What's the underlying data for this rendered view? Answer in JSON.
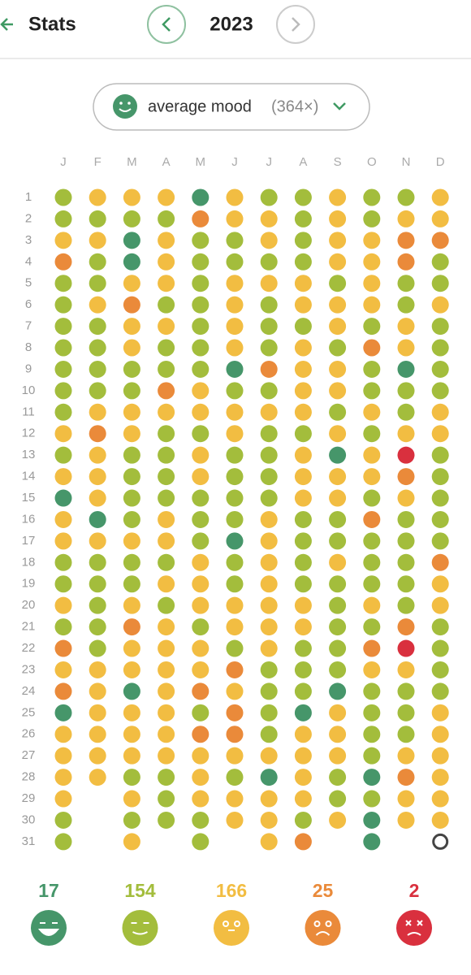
{
  "header": {
    "title": "Stats",
    "year": "2023"
  },
  "filter": {
    "label": "average mood",
    "count": "(364×)"
  },
  "mood_colors": {
    "1": "#d9303e",
    "2": "#ea8a3a",
    "3": "#f2bd42",
    "4": "#a3bd3c",
    "5": "#46966a"
  },
  "month_labels": [
    "J",
    "F",
    "M",
    "A",
    "M",
    "J",
    "J",
    "A",
    "S",
    "O",
    "N",
    "D"
  ],
  "day_labels": [
    1,
    2,
    3,
    4,
    5,
    6,
    7,
    8,
    9,
    10,
    11,
    12,
    13,
    14,
    15,
    16,
    17,
    18,
    19,
    20,
    21,
    22,
    23,
    24,
    25,
    26,
    27,
    28,
    29,
    30,
    31
  ],
  "months": [
    [
      4,
      4,
      3,
      2,
      4,
      4,
      4,
      4,
      4,
      4,
      4,
      3,
      4,
      3,
      5,
      3,
      3,
      4,
      4,
      3,
      4,
      2,
      3,
      2,
      5,
      3,
      3,
      3,
      3,
      4,
      4
    ],
    [
      3,
      4,
      3,
      4,
      4,
      3,
      4,
      4,
      4,
      4,
      3,
      2,
      3,
      3,
      3,
      5,
      3,
      4,
      4,
      4,
      4,
      4,
      3,
      3,
      3,
      3,
      3,
      3
    ],
    [
      3,
      4,
      5,
      5,
      3,
      2,
      3,
      3,
      4,
      4,
      3,
      3,
      4,
      4,
      4,
      4,
      3,
      4,
      4,
      3,
      2,
      3,
      3,
      5,
      3,
      3,
      3,
      4,
      3,
      4,
      3
    ],
    [
      3,
      4,
      3,
      3,
      3,
      4,
      3,
      4,
      4,
      2,
      3,
      4,
      4,
      4,
      4,
      3,
      3,
      4,
      3,
      4,
      3,
      3,
      3,
      3,
      3,
      3,
      3,
      4,
      4,
      4
    ],
    [
      5,
      2,
      4,
      4,
      4,
      4,
      4,
      4,
      4,
      3,
      3,
      4,
      3,
      3,
      4,
      4,
      4,
      3,
      3,
      3,
      4,
      3,
      3,
      2,
      4,
      2,
      3,
      3,
      3,
      4,
      4
    ],
    [
      3,
      3,
      4,
      4,
      3,
      3,
      3,
      3,
      5,
      4,
      3,
      3,
      4,
      4,
      4,
      4,
      5,
      4,
      4,
      3,
      3,
      4,
      2,
      3,
      2,
      2,
      3,
      4,
      3,
      3
    ],
    [
      4,
      3,
      3,
      4,
      3,
      4,
      4,
      4,
      2,
      4,
      3,
      4,
      4,
      4,
      4,
      3,
      3,
      3,
      3,
      3,
      3,
      3,
      4,
      4,
      4,
      4,
      3,
      5,
      3,
      3,
      3
    ],
    [
      4,
      4,
      4,
      4,
      3,
      3,
      4,
      3,
      3,
      3,
      3,
      4,
      3,
      3,
      3,
      4,
      4,
      4,
      4,
      3,
      3,
      4,
      4,
      4,
      5,
      3,
      3,
      3,
      3,
      4,
      2
    ],
    [
      3,
      3,
      3,
      3,
      4,
      3,
      3,
      4,
      3,
      3,
      4,
      3,
      5,
      3,
      3,
      4,
      4,
      3,
      4,
      4,
      4,
      4,
      4,
      5,
      3,
      3,
      3,
      4,
      4,
      3
    ],
    [
      4,
      4,
      3,
      3,
      3,
      3,
      4,
      2,
      4,
      4,
      3,
      4,
      3,
      3,
      4,
      2,
      4,
      4,
      4,
      3,
      4,
      2,
      3,
      4,
      4,
      4,
      4,
      5,
      4,
      5,
      5
    ],
    [
      4,
      3,
      2,
      2,
      4,
      4,
      3,
      3,
      5,
      4,
      4,
      3,
      1,
      2,
      3,
      4,
      4,
      4,
      4,
      4,
      2,
      1,
      3,
      4,
      4,
      4,
      3,
      2,
      3,
      3
    ],
    [
      3,
      3,
      2,
      4,
      4,
      3,
      4,
      4,
      4,
      4,
      3,
      3,
      4,
      4,
      4,
      4,
      4,
      2,
      3,
      3,
      4,
      4,
      4,
      4,
      3,
      3,
      3,
      3,
      3,
      3,
      null
    ]
  ],
  "summary": [
    {
      "level": 5,
      "count": 17
    },
    {
      "level": 4,
      "count": 154
    },
    {
      "level": 3,
      "count": 166
    },
    {
      "level": 2,
      "count": 25
    },
    {
      "level": 1,
      "count": 2
    }
  ]
}
